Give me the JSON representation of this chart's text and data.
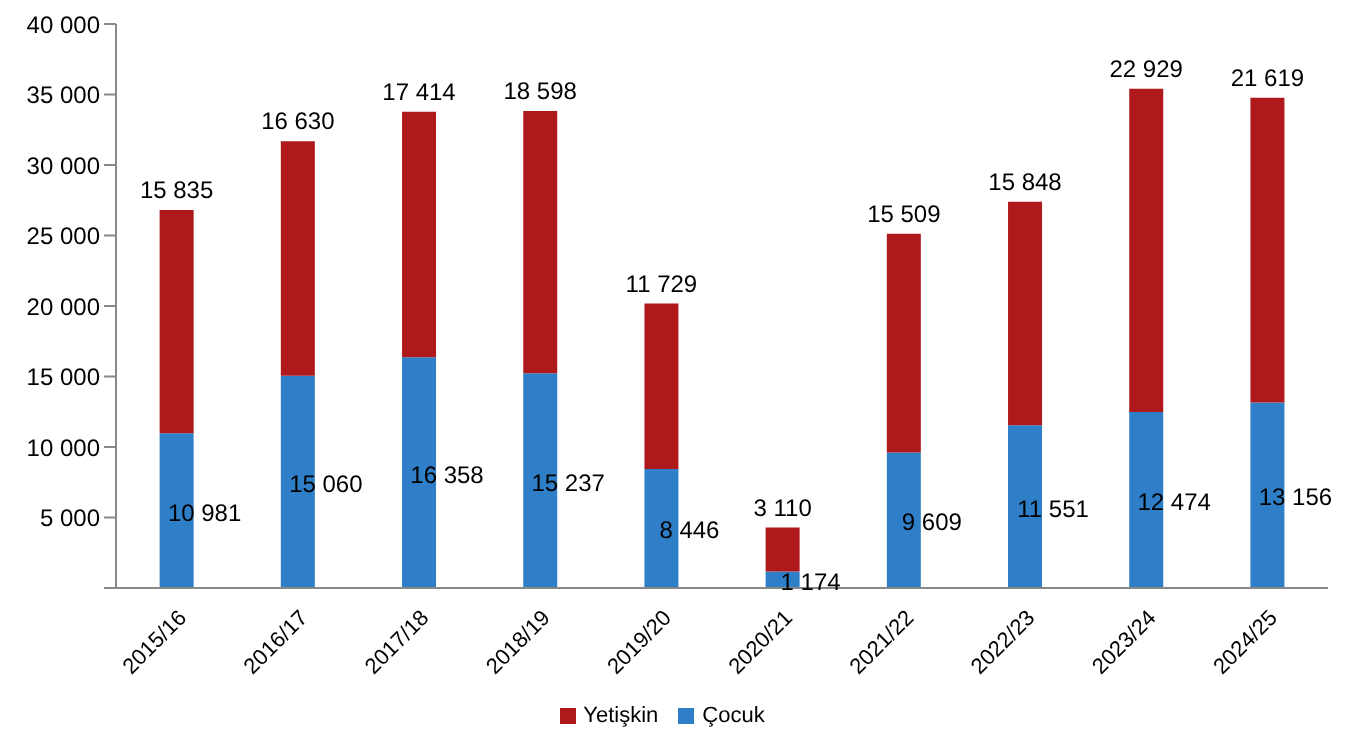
{
  "chart_data": {
    "type": "bar",
    "stacked": true,
    "legend": "bottom",
    "categories": [
      "2015/16",
      "2016/17",
      "2017/18",
      "2018/19",
      "2019/20",
      "2020/21",
      "2021/22",
      "2022/23",
      "2023/24",
      "2024/25"
    ],
    "ylim": [
      0,
      40000
    ],
    "yticks": [
      {
        "value": 0,
        "label": null
      },
      {
        "value": 5000,
        "label": "5 000"
      },
      {
        "value": 10000,
        "label": "10 000"
      },
      {
        "value": 15000,
        "label": "15 000"
      },
      {
        "value": 20000,
        "label": "20 000"
      },
      {
        "value": 25000,
        "label": "25 000"
      },
      {
        "value": 30000,
        "label": "30 000"
      },
      {
        "value": 35000,
        "label": "35 000"
      },
      {
        "value": 40000,
        "label": "40 000"
      }
    ],
    "series": [
      {
        "name": "Çocuk",
        "color": "#2e7fc8",
        "values": [
          10981,
          15060,
          16358,
          15237,
          8446,
          1174,
          9609,
          11551,
          12474,
          13156
        ],
        "value_labels": [
          "10 981",
          "15 060",
          "16 358",
          "15 237",
          "8 446",
          "1 174",
          "9 609",
          "11 551",
          "12 474",
          "13 156"
        ]
      },
      {
        "name": "Yetişkin",
        "color": "#b0191c",
        "values": [
          15835,
          16630,
          17414,
          18598,
          11729,
          3110,
          15509,
          15848,
          22929,
          21619
        ],
        "value_labels": [
          "15 835",
          "16 630",
          "17 414",
          "18 598",
          "11 729",
          "3 110",
          "15 509",
          "15 848",
          "22 929",
          "21 619"
        ]
      }
    ]
  }
}
